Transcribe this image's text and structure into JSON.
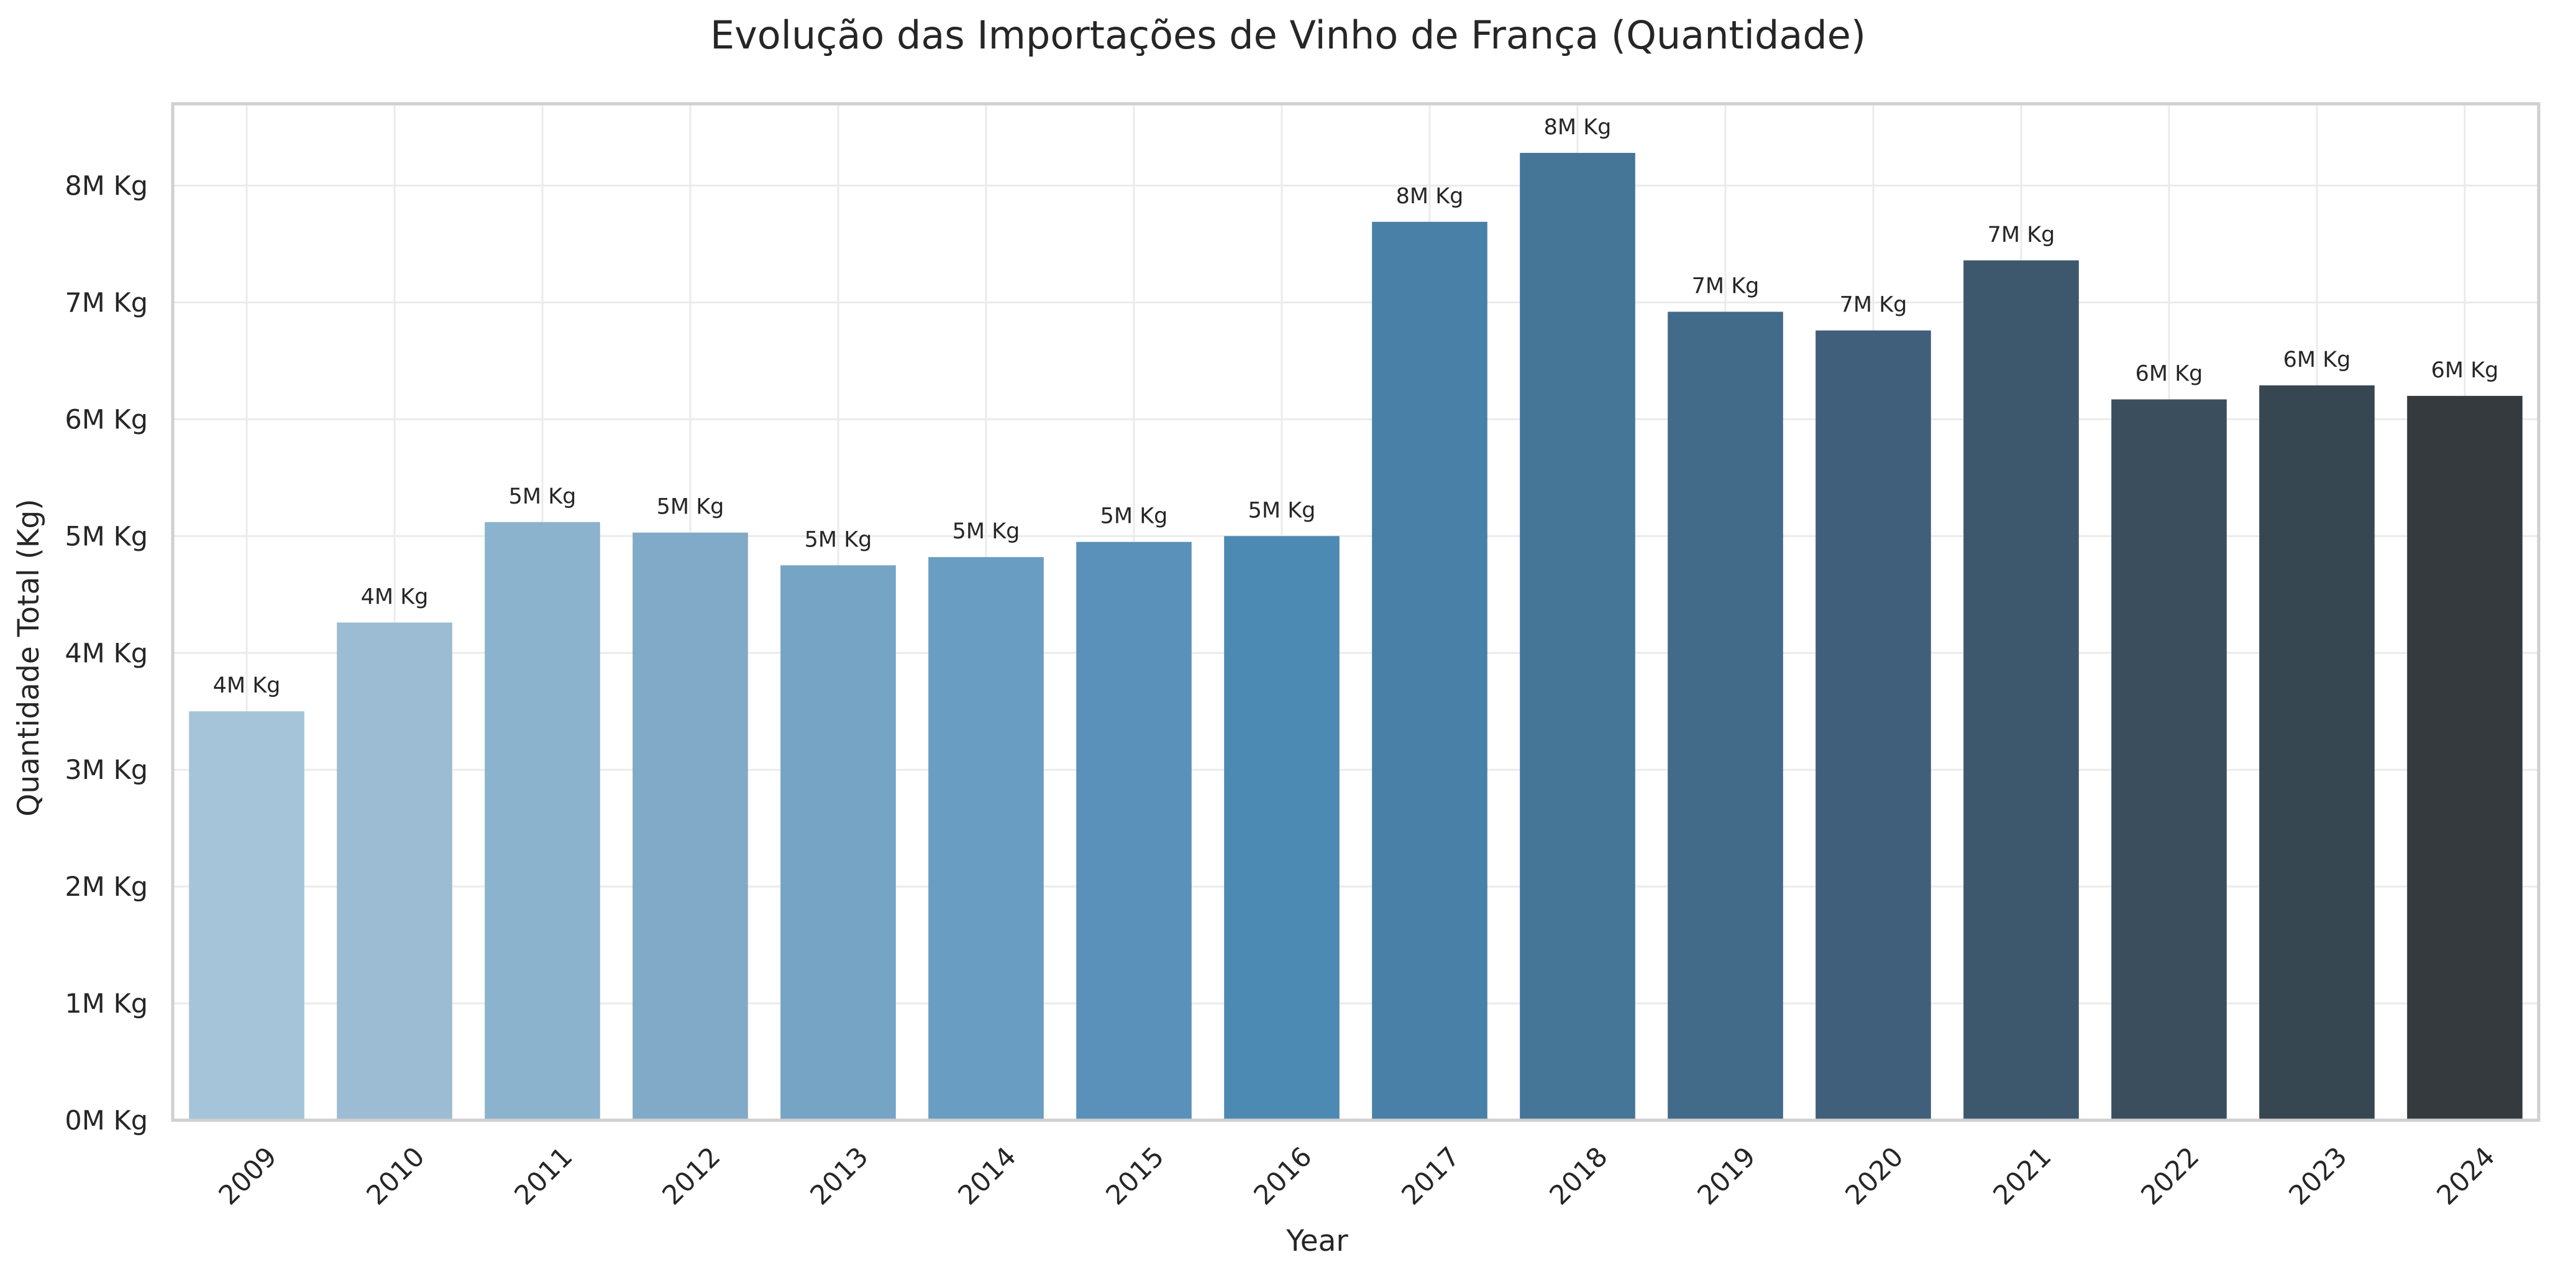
{
  "chart_data": {
    "type": "bar",
    "title": "Evolução das Importações de Vinho de França (Quantidade)",
    "xlabel": "Year",
    "ylabel": "Quantidade Total (Kg)",
    "categories": [
      "2009",
      "2010",
      "2011",
      "2012",
      "2013",
      "2014",
      "2015",
      "2016",
      "2017",
      "2018",
      "2019",
      "2020",
      "2021",
      "2022",
      "2023",
      "2024"
    ],
    "values": [
      3500000,
      4260000,
      5120000,
      5030000,
      4750000,
      4820000,
      4950000,
      5000000,
      7690000,
      8280000,
      6920000,
      6760000,
      7360000,
      6170000,
      6290000,
      6200000
    ],
    "data_labels": [
      "4M Kg",
      "4M Kg",
      "5M Kg",
      "5M Kg",
      "5M Kg",
      "5M Kg",
      "5M Kg",
      "5M Kg",
      "8M Kg",
      "8M Kg",
      "7M Kg",
      "7M Kg",
      "7M Kg",
      "6M Kg",
      "6M Kg",
      "6M Kg"
    ],
    "ylim": [
      0,
      8700000
    ],
    "yticks": [
      0,
      1000000,
      2000000,
      3000000,
      4000000,
      5000000,
      6000000,
      7000000,
      8000000
    ],
    "ytick_labels": [
      "0M Kg",
      "1M Kg",
      "2M Kg",
      "3M Kg",
      "4M Kg",
      "5M Kg",
      "6M Kg",
      "7M Kg",
      "8M Kg"
    ],
    "grid": true,
    "colors": [
      "#a6c4d9",
      "#9bbcd3",
      "#8cb3cd",
      "#81aac9",
      "#75a4c5",
      "#699dc2",
      "#5a91ba",
      "#4d8ab3",
      "#4880a8",
      "#467697",
      "#426a89",
      "#3f5f7a",
      "#3d576c",
      "#3a4e5e",
      "#374752",
      "#353a3f"
    ]
  }
}
